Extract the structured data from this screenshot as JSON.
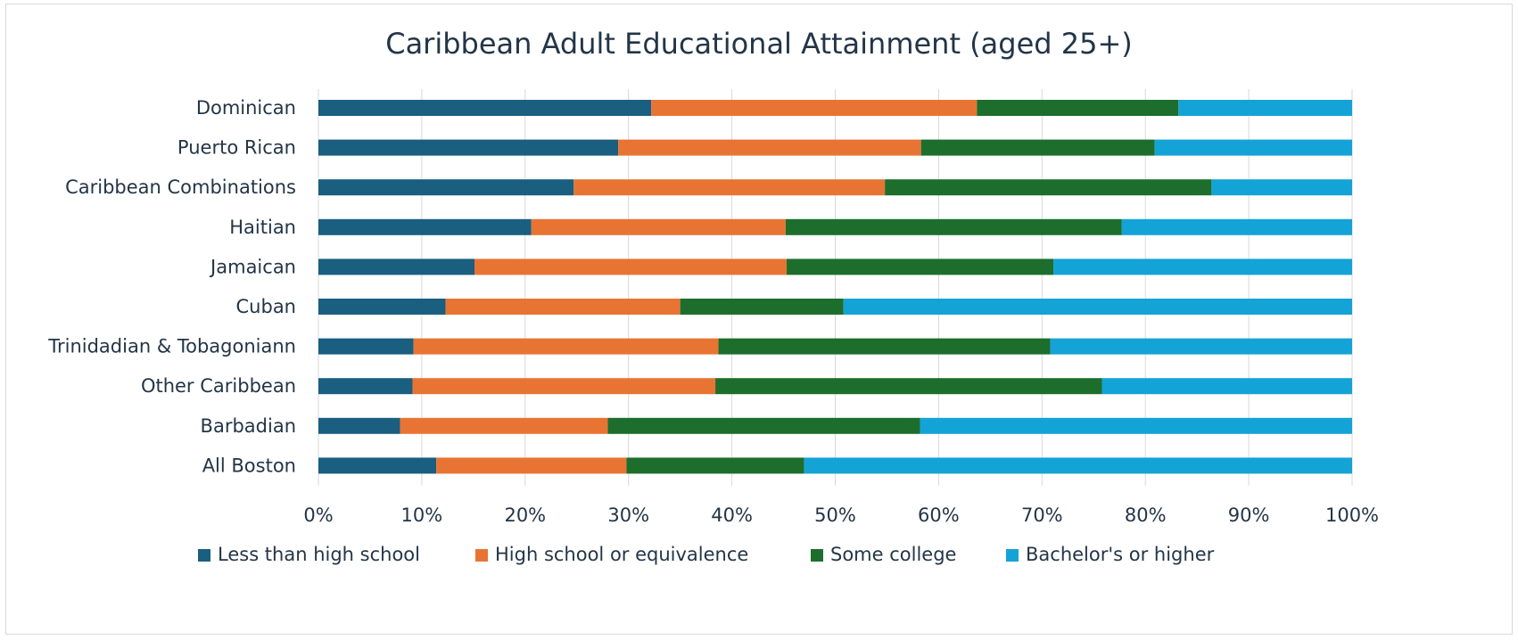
{
  "chart_data": {
    "type": "bar",
    "orientation": "horizontal",
    "stacked": "percent",
    "title": "Caribbean Adult Educational Attainment (aged 25+)",
    "xlabel": "",
    "ylabel": "",
    "xlim": [
      0,
      100
    ],
    "x_ticks": [
      "0%",
      "10%",
      "20%",
      "30%",
      "40%",
      "50%",
      "60%",
      "70%",
      "80%",
      "90%",
      "100%"
    ],
    "grid": "vertical",
    "legend_position": "bottom",
    "categories": [
      "Dominican",
      "Puerto Rican",
      "Caribbean Combinations",
      "Haitian",
      "Jamaican",
      "Cuban",
      "Trinidadian & Tobagoniann",
      "Other Caribbean",
      "Barbadian",
      "All Boston"
    ],
    "series": [
      {
        "name": "Less than high school",
        "color": "#1a5e80",
        "values": [
          32.2,
          29.0,
          24.7,
          20.6,
          15.1,
          12.3,
          9.2,
          9.1,
          7.9,
          11.4
        ]
      },
      {
        "name": "High school or equivalence",
        "color": "#e87434",
        "values": [
          31.5,
          29.3,
          30.1,
          24.6,
          30.2,
          22.7,
          29.5,
          29.3,
          20.1,
          18.4
        ]
      },
      {
        "name": "Some college",
        "color": "#1d6e2d",
        "values": [
          19.5,
          22.6,
          31.6,
          32.5,
          25.8,
          15.8,
          32.1,
          37.4,
          30.2,
          17.2
        ]
      },
      {
        "name": "Bachelor's or higher",
        "color": "#14a3d6",
        "values": [
          16.8,
          19.1,
          13.6,
          22.3,
          28.9,
          49.2,
          29.2,
          24.2,
          41.8,
          53.0
        ]
      }
    ]
  }
}
